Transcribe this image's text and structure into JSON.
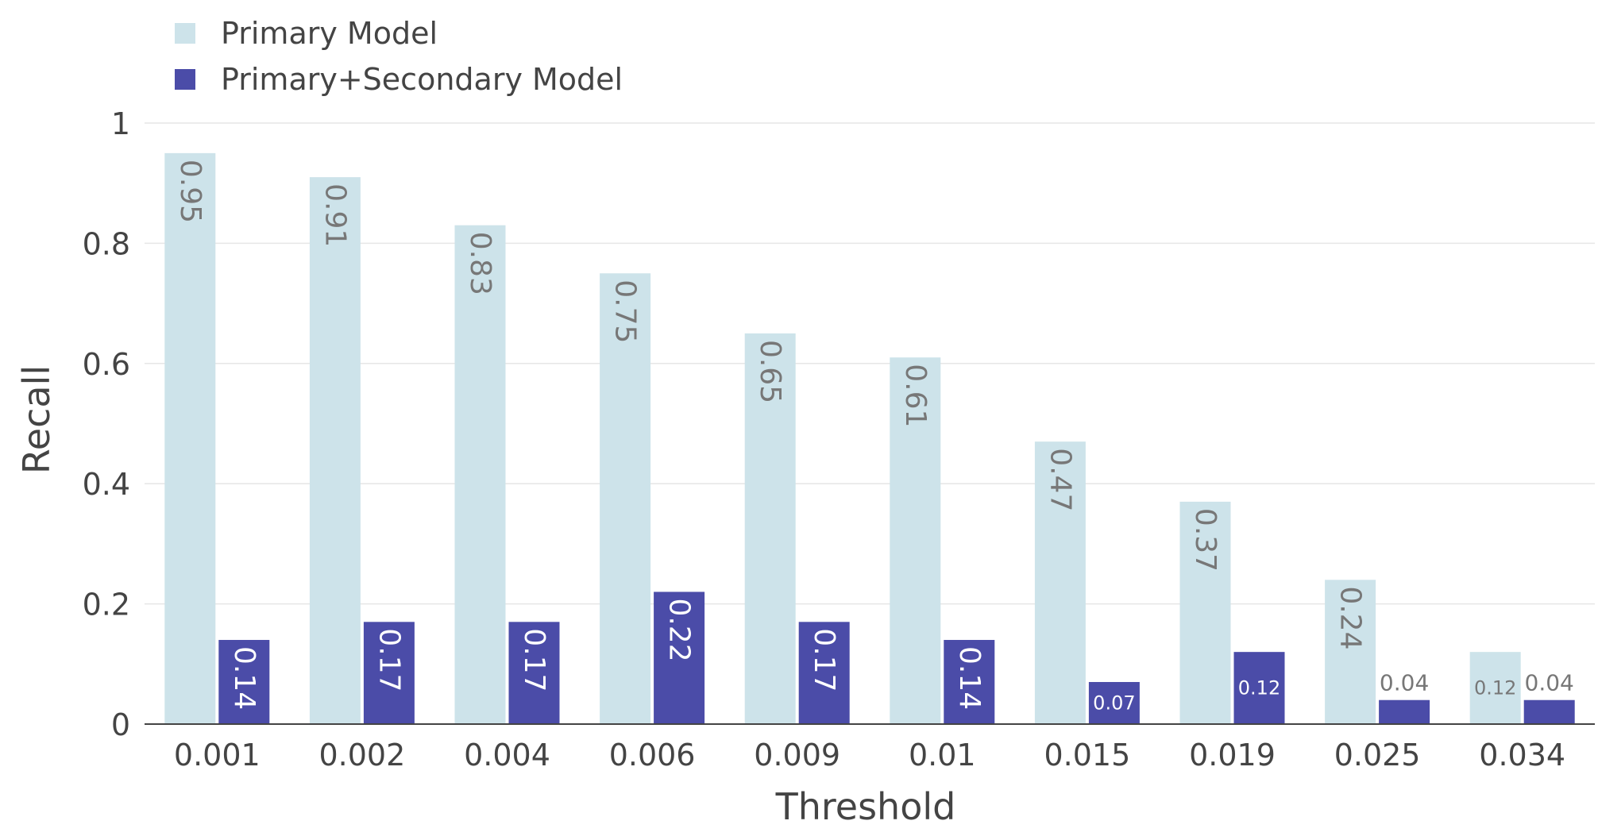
{
  "chart_data": {
    "type": "bar",
    "title": "",
    "xlabel": "Threshold",
    "ylabel": "Recall",
    "ylim": [
      0,
      1
    ],
    "yticks": [
      "0",
      "0.2",
      "0.4",
      "0.6",
      "0.8",
      "1"
    ],
    "grid": true,
    "legend": "top-left",
    "categories": [
      "0.001",
      "0.002",
      "0.004",
      "0.006",
      "0.009",
      "0.01",
      "0.015",
      "0.019",
      "0.025",
      "0.034"
    ],
    "series": [
      {
        "name": "Primary Model",
        "color": "#cde3ea",
        "label_color": "#777777",
        "values": [
          0.95,
          0.91,
          0.83,
          0.75,
          0.65,
          0.61,
          0.47,
          0.37,
          0.24,
          0.12
        ],
        "labels": [
          "0.95",
          "0.91",
          "0.83",
          "0.75",
          "0.65",
          "0.61",
          "0.47",
          "0.37",
          "0.24",
          "0.12"
        ]
      },
      {
        "name": "Primary+Secondary Model",
        "color": "#4b4ca8",
        "label_color": "#ffffff",
        "values": [
          0.14,
          0.17,
          0.17,
          0.22,
          0.17,
          0.14,
          0.07,
          0.12,
          0.04,
          0.04
        ],
        "labels": [
          "0.14",
          "0.17",
          "0.17",
          "0.22",
          "0.17",
          "0.14",
          "0.07",
          "0.12",
          "0.04",
          "0.04"
        ]
      }
    ]
  }
}
